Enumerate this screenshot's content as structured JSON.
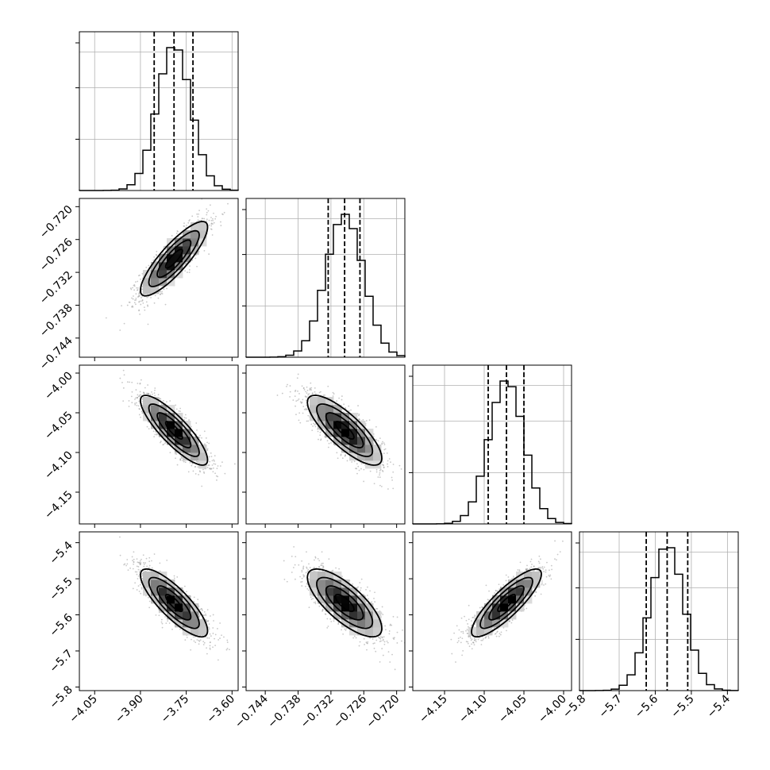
{
  "chart_data": {
    "type": "corner",
    "parameters": [
      {
        "id": "p0",
        "range": [
          -4.1,
          -3.58
        ],
        "ticks": [
          -4.05,
          -3.9,
          -3.75,
          -3.6
        ],
        "tick_labels": [
          "−4.05",
          "−3.90",
          "−3.75",
          "−3.60"
        ],
        "mean": -3.79,
        "std": 0.055,
        "quantiles": [
          -3.855,
          -3.79,
          -3.728
        ]
      },
      {
        "id": "p1",
        "range": [
          -0.7475,
          -0.7185
        ],
        "ticks": [
          -0.744,
          -0.738,
          -0.732,
          -0.726,
          -0.72
        ],
        "tick_labels": [
          "−0.744",
          "−0.738",
          "−0.732",
          "−0.726",
          "−0.720"
        ],
        "mean": -0.7295,
        "std": 0.0034,
        "quantiles": [
          -0.7325,
          -0.7295,
          -0.7267
        ]
      },
      {
        "id": "p2",
        "range": [
          -4.19,
          -3.99
        ],
        "ticks": [
          -4.15,
          -4.1,
          -4.05,
          -4.0
        ],
        "tick_labels": [
          "−4.15",
          "−4.10",
          "−4.05",
          "−4.00"
        ],
        "mean": -4.072,
        "std": 0.022,
        "quantiles": [
          -4.095,
          -4.072,
          -4.05
        ]
      },
      {
        "id": "p3",
        "range": [
          -5.81,
          -5.37
        ],
        "ticks": [
          -5.8,
          -5.7,
          -5.6,
          -5.5,
          -5.4
        ],
        "tick_labels": [
          "−5.8",
          "−5.7",
          "−5.6",
          "−5.5",
          "−5.4"
        ],
        "mean": -5.567,
        "std": 0.047,
        "quantiles": [
          -5.625,
          -5.567,
          -5.51
        ]
      }
    ],
    "correlations": [
      [
        1,
        0.85,
        -0.85,
        -0.82
      ],
      [
        0.85,
        1,
        -0.8,
        -0.75
      ],
      [
        -0.85,
        -0.8,
        1,
        0.85
      ],
      [
        -0.82,
        -0.75,
        0.85,
        1
      ]
    ],
    "grid": true,
    "quantile_levels": [
      0.16,
      0.5,
      0.84
    ],
    "contour_sigma_levels": [
      0.5,
      1.0,
      1.5,
      2.0
    ],
    "title": "",
    "xlabel": "",
    "ylabel": ""
  }
}
